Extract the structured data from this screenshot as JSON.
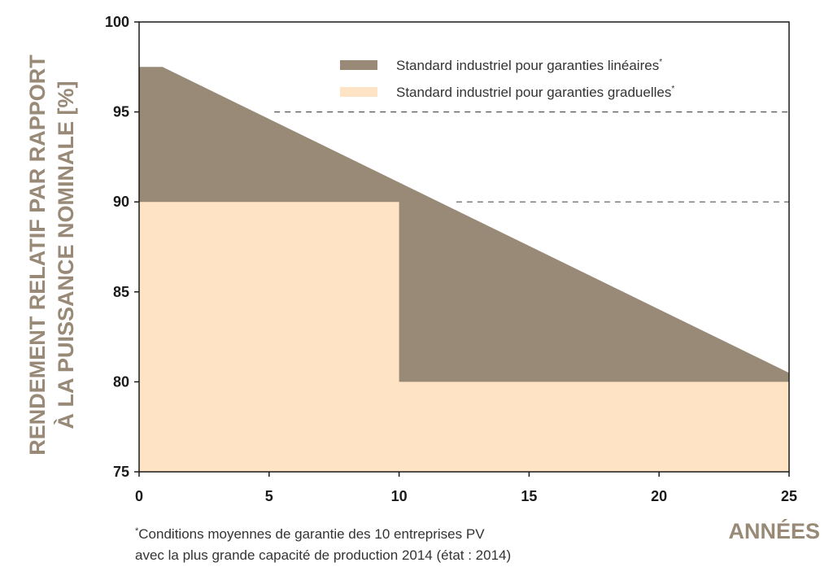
{
  "chart_data": {
    "type": "area",
    "xlabel": "ANNÉES",
    "ylabel_lines": [
      "RENDEMENT RELATIF PAR RAPPORT",
      "À LA PUISSANCE NOMINALE [%]"
    ],
    "xlim": [
      0,
      25
    ],
    "ylim": [
      75,
      100
    ],
    "xticks": [
      "0",
      "5",
      "10",
      "15",
      "20",
      "25"
    ],
    "yticks": [
      "75",
      "80",
      "85",
      "90",
      "95",
      "100"
    ],
    "legend_position": "top-right",
    "series": [
      {
        "name": "Standard industriel pour garanties linéaires",
        "name_mark": "*",
        "color": "#998a78",
        "x": [
          0,
          0.9,
          25
        ],
        "y": [
          97.5,
          97.5,
          80.5
        ]
      },
      {
        "name": "Standard industriel pour garanties graduelles",
        "name_mark": "*",
        "color": "#fee3c4",
        "x": [
          0,
          10,
          10,
          25
        ],
        "y": [
          90,
          90,
          80,
          80
        ]
      }
    ],
    "reference_lines": [
      {
        "y": 95,
        "x_start": 5.2,
        "x_end": 25
      },
      {
        "y": 90,
        "x_start": 12.2,
        "x_end": 25
      }
    ],
    "footnote": {
      "mark": "*",
      "lines": [
        "Conditions moyennes de garantie des 10 entreprises PV",
        "avec la plus grande capacité de production 2014 (état : 2014)"
      ]
    }
  }
}
